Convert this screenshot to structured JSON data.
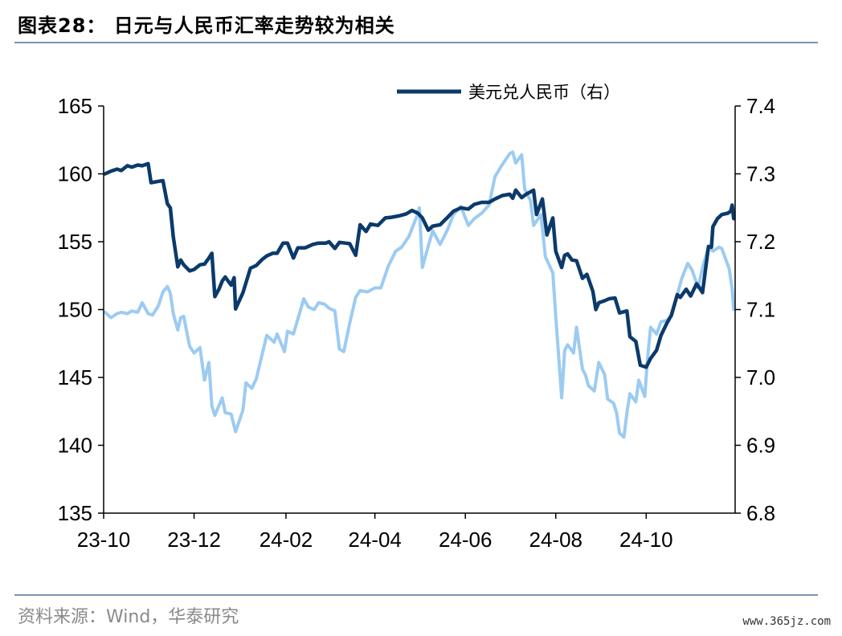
{
  "title": "图表28： 日元与人民币汇率走势较为相关",
  "source": "资料来源：Wind，华泰研究",
  "watermark": "www.365jz.com",
  "colors": {
    "usdcny": "#0b3a6b",
    "usdjpy": "#9ccbf2",
    "axis": "#000000",
    "rule": "#7a93b8"
  },
  "chart_data": {
    "type": "line",
    "title": "",
    "x_axis": {
      "ticks": [
        "23-10",
        "23-12",
        "24-02",
        "24-04",
        "24-06",
        "24-08",
        "24-10"
      ]
    },
    "y_left": {
      "min": 135,
      "max": 165,
      "ticks": [
        "135",
        "140",
        "145",
        "150",
        "155",
        "160",
        "165"
      ]
    },
    "y_right": {
      "min": 6.8,
      "max": 7.4,
      "ticks": [
        "6.8",
        "6.9",
        "7.0",
        "7.1",
        "7.2",
        "7.3",
        "7.4"
      ]
    },
    "legend": {
      "position": "top-right",
      "entries": [
        "美元兑人民币（右）"
      ]
    },
    "series": [
      {
        "name": "",
        "axis": "left",
        "color": "#9ccbf2",
        "points": [
          [
            "2023-10-02",
            149.8
          ],
          [
            "2023-10-06",
            149.4
          ],
          [
            "2023-10-10",
            149.7
          ],
          [
            "2023-10-13",
            149.8
          ],
          [
            "2023-10-17",
            149.7
          ],
          [
            "2023-10-20",
            149.9
          ],
          [
            "2023-10-24",
            149.8
          ],
          [
            "2023-10-27",
            150.5
          ],
          [
            "2023-10-31",
            149.7
          ],
          [
            "2023-11-03",
            149.6
          ],
          [
            "2023-11-07",
            150.3
          ],
          [
            "2023-11-10",
            151.3
          ],
          [
            "2023-11-13",
            151.7
          ],
          [
            "2023-11-15",
            151.2
          ],
          [
            "2023-11-17",
            149.7
          ],
          [
            "2023-11-20",
            148.5
          ],
          [
            "2023-11-22",
            149.4
          ],
          [
            "2023-11-24",
            149.5
          ],
          [
            "2023-11-28",
            147.3
          ],
          [
            "2023-12-01",
            146.8
          ],
          [
            "2023-12-05",
            147.2
          ],
          [
            "2023-12-08",
            144.8
          ],
          [
            "2023-12-11",
            146.1
          ],
          [
            "2023-12-13",
            142.9
          ],
          [
            "2023-12-15",
            142.2
          ],
          [
            "2023-12-20",
            143.5
          ],
          [
            "2023-12-22",
            142.4
          ],
          [
            "2023-12-26",
            142.3
          ],
          [
            "2023-12-29",
            141.0
          ],
          [
            "2024-01-03",
            142.6
          ],
          [
            "2024-01-05",
            144.6
          ],
          [
            "2024-01-09",
            144.2
          ],
          [
            "2024-01-12",
            144.9
          ],
          [
            "2024-01-17",
            147.2
          ],
          [
            "2024-01-19",
            148.1
          ],
          [
            "2024-01-24",
            147.6
          ],
          [
            "2024-01-26",
            148.2
          ],
          [
            "2024-01-31",
            146.9
          ],
          [
            "2024-02-02",
            148.4
          ],
          [
            "2024-02-06",
            148.2
          ],
          [
            "2024-02-09",
            149.3
          ],
          [
            "2024-02-13",
            150.8
          ],
          [
            "2024-02-16",
            150.2
          ],
          [
            "2024-02-20",
            150.0
          ],
          [
            "2024-02-23",
            150.5
          ],
          [
            "2024-02-27",
            150.4
          ],
          [
            "2024-03-01",
            150.1
          ],
          [
            "2024-03-05",
            149.9
          ],
          [
            "2024-03-08",
            147.1
          ],
          [
            "2024-03-11",
            146.9
          ],
          [
            "2024-03-15",
            149.0
          ],
          [
            "2024-03-19",
            150.9
          ],
          [
            "2024-03-22",
            151.4
          ],
          [
            "2024-03-27",
            151.3
          ],
          [
            "2024-04-01",
            151.6
          ],
          [
            "2024-04-05",
            151.6
          ],
          [
            "2024-04-10",
            153.2
          ],
          [
            "2024-04-15",
            154.3
          ],
          [
            "2024-04-19",
            154.6
          ],
          [
            "2024-04-24",
            155.4
          ],
          [
            "2024-04-29",
            156.8
          ],
          [
            "2024-05-01",
            157.5
          ],
          [
            "2024-05-03",
            153.1
          ],
          [
            "2024-05-07",
            154.7
          ],
          [
            "2024-05-10",
            155.8
          ],
          [
            "2024-05-15",
            154.8
          ],
          [
            "2024-05-20",
            155.9
          ],
          [
            "2024-05-24",
            157.0
          ],
          [
            "2024-05-29",
            157.6
          ],
          [
            "2024-06-03",
            156.2
          ],
          [
            "2024-06-07",
            156.7
          ],
          [
            "2024-06-12",
            157.1
          ],
          [
            "2024-06-17",
            157.7
          ],
          [
            "2024-06-21",
            159.8
          ],
          [
            "2024-06-26",
            160.7
          ],
          [
            "2024-07-01",
            161.5
          ],
          [
            "2024-07-03",
            161.6
          ],
          [
            "2024-07-05",
            160.8
          ],
          [
            "2024-07-09",
            161.4
          ],
          [
            "2024-07-11",
            158.9
          ],
          [
            "2024-07-15",
            158.0
          ],
          [
            "2024-07-17",
            156.2
          ],
          [
            "2024-07-22",
            157.0
          ],
          [
            "2024-07-25",
            153.9
          ],
          [
            "2024-07-30",
            152.7
          ],
          [
            "2024-08-01",
            149.5
          ],
          [
            "2024-08-05",
            143.5
          ],
          [
            "2024-08-07",
            147.0
          ],
          [
            "2024-08-09",
            147.4
          ],
          [
            "2024-08-13",
            146.8
          ],
          [
            "2024-08-15",
            148.7
          ],
          [
            "2024-08-19",
            145.6
          ],
          [
            "2024-08-21",
            145.2
          ],
          [
            "2024-08-23",
            144.4
          ],
          [
            "2024-08-27",
            144.0
          ],
          [
            "2024-08-30",
            146.1
          ],
          [
            "2024-09-03",
            145.2
          ],
          [
            "2024-09-05",
            143.4
          ],
          [
            "2024-09-09",
            143.1
          ],
          [
            "2024-09-11",
            142.4
          ],
          [
            "2024-09-13",
            140.9
          ],
          [
            "2024-09-16",
            140.6
          ],
          [
            "2024-09-18",
            142.4
          ],
          [
            "2024-09-20",
            143.8
          ],
          [
            "2024-09-24",
            143.2
          ],
          [
            "2024-09-26",
            144.8
          ],
          [
            "2024-09-30",
            143.6
          ],
          [
            "2024-10-02",
            146.5
          ],
          [
            "2024-10-04",
            148.7
          ],
          [
            "2024-10-08",
            148.2
          ],
          [
            "2024-10-11",
            149.1
          ],
          [
            "2024-10-15",
            149.2
          ],
          [
            "2024-10-18",
            149.5
          ],
          [
            "2024-10-22",
            151.1
          ],
          [
            "2024-10-25",
            152.3
          ],
          [
            "2024-10-29",
            153.4
          ],
          [
            "2024-11-01",
            152.9
          ],
          [
            "2024-11-05",
            151.6
          ],
          [
            "2024-11-08",
            153.1
          ],
          [
            "2024-11-12",
            154.6
          ],
          [
            "2024-11-15",
            154.3
          ],
          [
            "2024-11-19",
            154.6
          ],
          [
            "2024-11-21",
            154.5
          ],
          [
            "2024-11-26",
            153.0
          ],
          [
            "2024-11-28",
            151.5
          ],
          [
            "2024-11-29",
            150.0
          ]
        ]
      },
      {
        "name": "美元兑人民币（右）",
        "axis": "right",
        "color": "#0b3a6b",
        "points": [
          [
            "2023-10-02",
            7.3
          ],
          [
            "2023-10-06",
            7.304
          ],
          [
            "2023-10-10",
            7.307
          ],
          [
            "2023-10-13",
            7.305
          ],
          [
            "2023-10-17",
            7.312
          ],
          [
            "2023-10-20",
            7.31
          ],
          [
            "2023-10-24",
            7.313
          ],
          [
            "2023-10-27",
            7.312
          ],
          [
            "2023-10-31",
            7.315
          ],
          [
            "2023-11-02",
            7.287
          ],
          [
            "2023-11-07",
            7.289
          ],
          [
            "2023-11-10",
            7.29
          ],
          [
            "2023-11-13",
            7.256
          ],
          [
            "2023-11-15",
            7.25
          ],
          [
            "2023-11-17",
            7.207
          ],
          [
            "2023-11-20",
            7.163
          ],
          [
            "2023-11-22",
            7.173
          ],
          [
            "2023-11-24",
            7.166
          ],
          [
            "2023-11-28",
            7.157
          ],
          [
            "2023-12-01",
            7.159
          ],
          [
            "2023-12-05",
            7.166
          ],
          [
            "2023-12-08",
            7.167
          ],
          [
            "2023-12-11",
            7.176
          ],
          [
            "2023-12-13",
            7.183
          ],
          [
            "2023-12-15",
            7.119
          ],
          [
            "2023-12-18",
            7.131
          ],
          [
            "2023-12-20",
            7.142
          ],
          [
            "2023-12-22",
            7.148
          ],
          [
            "2023-12-26",
            7.136
          ],
          [
            "2023-12-28",
            7.147
          ],
          [
            "2023-12-29",
            7.101
          ],
          [
            "2024-01-03",
            7.125
          ],
          [
            "2024-01-08",
            7.161
          ],
          [
            "2024-01-12",
            7.165
          ],
          [
            "2024-01-16",
            7.174
          ],
          [
            "2024-01-19",
            7.179
          ],
          [
            "2024-01-23",
            7.183
          ],
          [
            "2024-01-26",
            7.183
          ],
          [
            "2024-01-30",
            7.198
          ],
          [
            "2024-02-02",
            7.198
          ],
          [
            "2024-02-06",
            7.176
          ],
          [
            "2024-02-09",
            7.191
          ],
          [
            "2024-02-14",
            7.191
          ],
          [
            "2024-02-19",
            7.196
          ],
          [
            "2024-02-23",
            7.198
          ],
          [
            "2024-02-28",
            7.198
          ],
          [
            "2024-03-01",
            7.2
          ],
          [
            "2024-03-05",
            7.19
          ],
          [
            "2024-03-08",
            7.199
          ],
          [
            "2024-03-12",
            7.198
          ],
          [
            "2024-03-15",
            7.197
          ],
          [
            "2024-03-19",
            7.18
          ],
          [
            "2024-03-22",
            7.225
          ],
          [
            "2024-03-26",
            7.215
          ],
          [
            "2024-03-29",
            7.226
          ],
          [
            "2024-04-03",
            7.224
          ],
          [
            "2024-04-08",
            7.235
          ],
          [
            "2024-04-12",
            7.236
          ],
          [
            "2024-04-17",
            7.238
          ],
          [
            "2024-04-22",
            7.241
          ],
          [
            "2024-04-26",
            7.246
          ],
          [
            "2024-04-30",
            7.242
          ],
          [
            "2024-05-03",
            7.235
          ],
          [
            "2024-05-07",
            7.217
          ],
          [
            "2024-05-10",
            7.223
          ],
          [
            "2024-05-15",
            7.225
          ],
          [
            "2024-05-20",
            7.236
          ],
          [
            "2024-05-24",
            7.245
          ],
          [
            "2024-05-29",
            7.25
          ],
          [
            "2024-06-03",
            7.248
          ],
          [
            "2024-06-07",
            7.255
          ],
          [
            "2024-06-12",
            7.258
          ],
          [
            "2024-06-17",
            7.258
          ],
          [
            "2024-06-21",
            7.263
          ],
          [
            "2024-06-26",
            7.268
          ],
          [
            "2024-07-01",
            7.27
          ],
          [
            "2024-07-03",
            7.264
          ],
          [
            "2024-07-05",
            7.276
          ],
          [
            "2024-07-09",
            7.265
          ],
          [
            "2024-07-12",
            7.27
          ],
          [
            "2024-07-17",
            7.276
          ],
          [
            "2024-07-19",
            7.24
          ],
          [
            "2024-07-23",
            7.263
          ],
          [
            "2024-07-26",
            7.21
          ],
          [
            "2024-07-30",
            7.235
          ],
          [
            "2024-08-01",
            7.186
          ],
          [
            "2024-08-05",
            7.162
          ],
          [
            "2024-08-07",
            7.18
          ],
          [
            "2024-08-09",
            7.182
          ],
          [
            "2024-08-12",
            7.173
          ],
          [
            "2024-08-15",
            7.172
          ],
          [
            "2024-08-19",
            7.146
          ],
          [
            "2024-08-22",
            7.152
          ],
          [
            "2024-08-26",
            7.127
          ],
          [
            "2024-08-28",
            7.1
          ],
          [
            "2024-08-30",
            7.11
          ],
          [
            "2024-09-03",
            7.113
          ],
          [
            "2024-09-06",
            7.116
          ],
          [
            "2024-09-10",
            7.117
          ],
          [
            "2024-09-13",
            7.095
          ],
          [
            "2024-09-18",
            7.098
          ],
          [
            "2024-09-20",
            7.06
          ],
          [
            "2024-09-24",
            7.053
          ],
          [
            "2024-09-27",
            7.018
          ],
          [
            "2024-10-01",
            7.015
          ],
          [
            "2024-10-04",
            7.028
          ],
          [
            "2024-10-08",
            7.04
          ],
          [
            "2024-10-11",
            7.062
          ],
          [
            "2024-10-15",
            7.08
          ],
          [
            "2024-10-18",
            7.092
          ],
          [
            "2024-10-22",
            7.122
          ],
          [
            "2024-10-24",
            7.118
          ],
          [
            "2024-10-28",
            7.13
          ],
          [
            "2024-10-31",
            7.12
          ],
          [
            "2024-11-04",
            7.138
          ],
          [
            "2024-11-06",
            7.132
          ],
          [
            "2024-11-08",
            7.125
          ],
          [
            "2024-11-12",
            7.193
          ],
          [
            "2024-11-14",
            7.192
          ],
          [
            "2024-11-15",
            7.222
          ],
          [
            "2024-11-18",
            7.234
          ],
          [
            "2024-11-21",
            7.24
          ],
          [
            "2024-11-25",
            7.242
          ],
          [
            "2024-11-27",
            7.245
          ],
          [
            "2024-11-28",
            7.254
          ],
          [
            "2024-11-29",
            7.234
          ]
        ]
      }
    ]
  }
}
